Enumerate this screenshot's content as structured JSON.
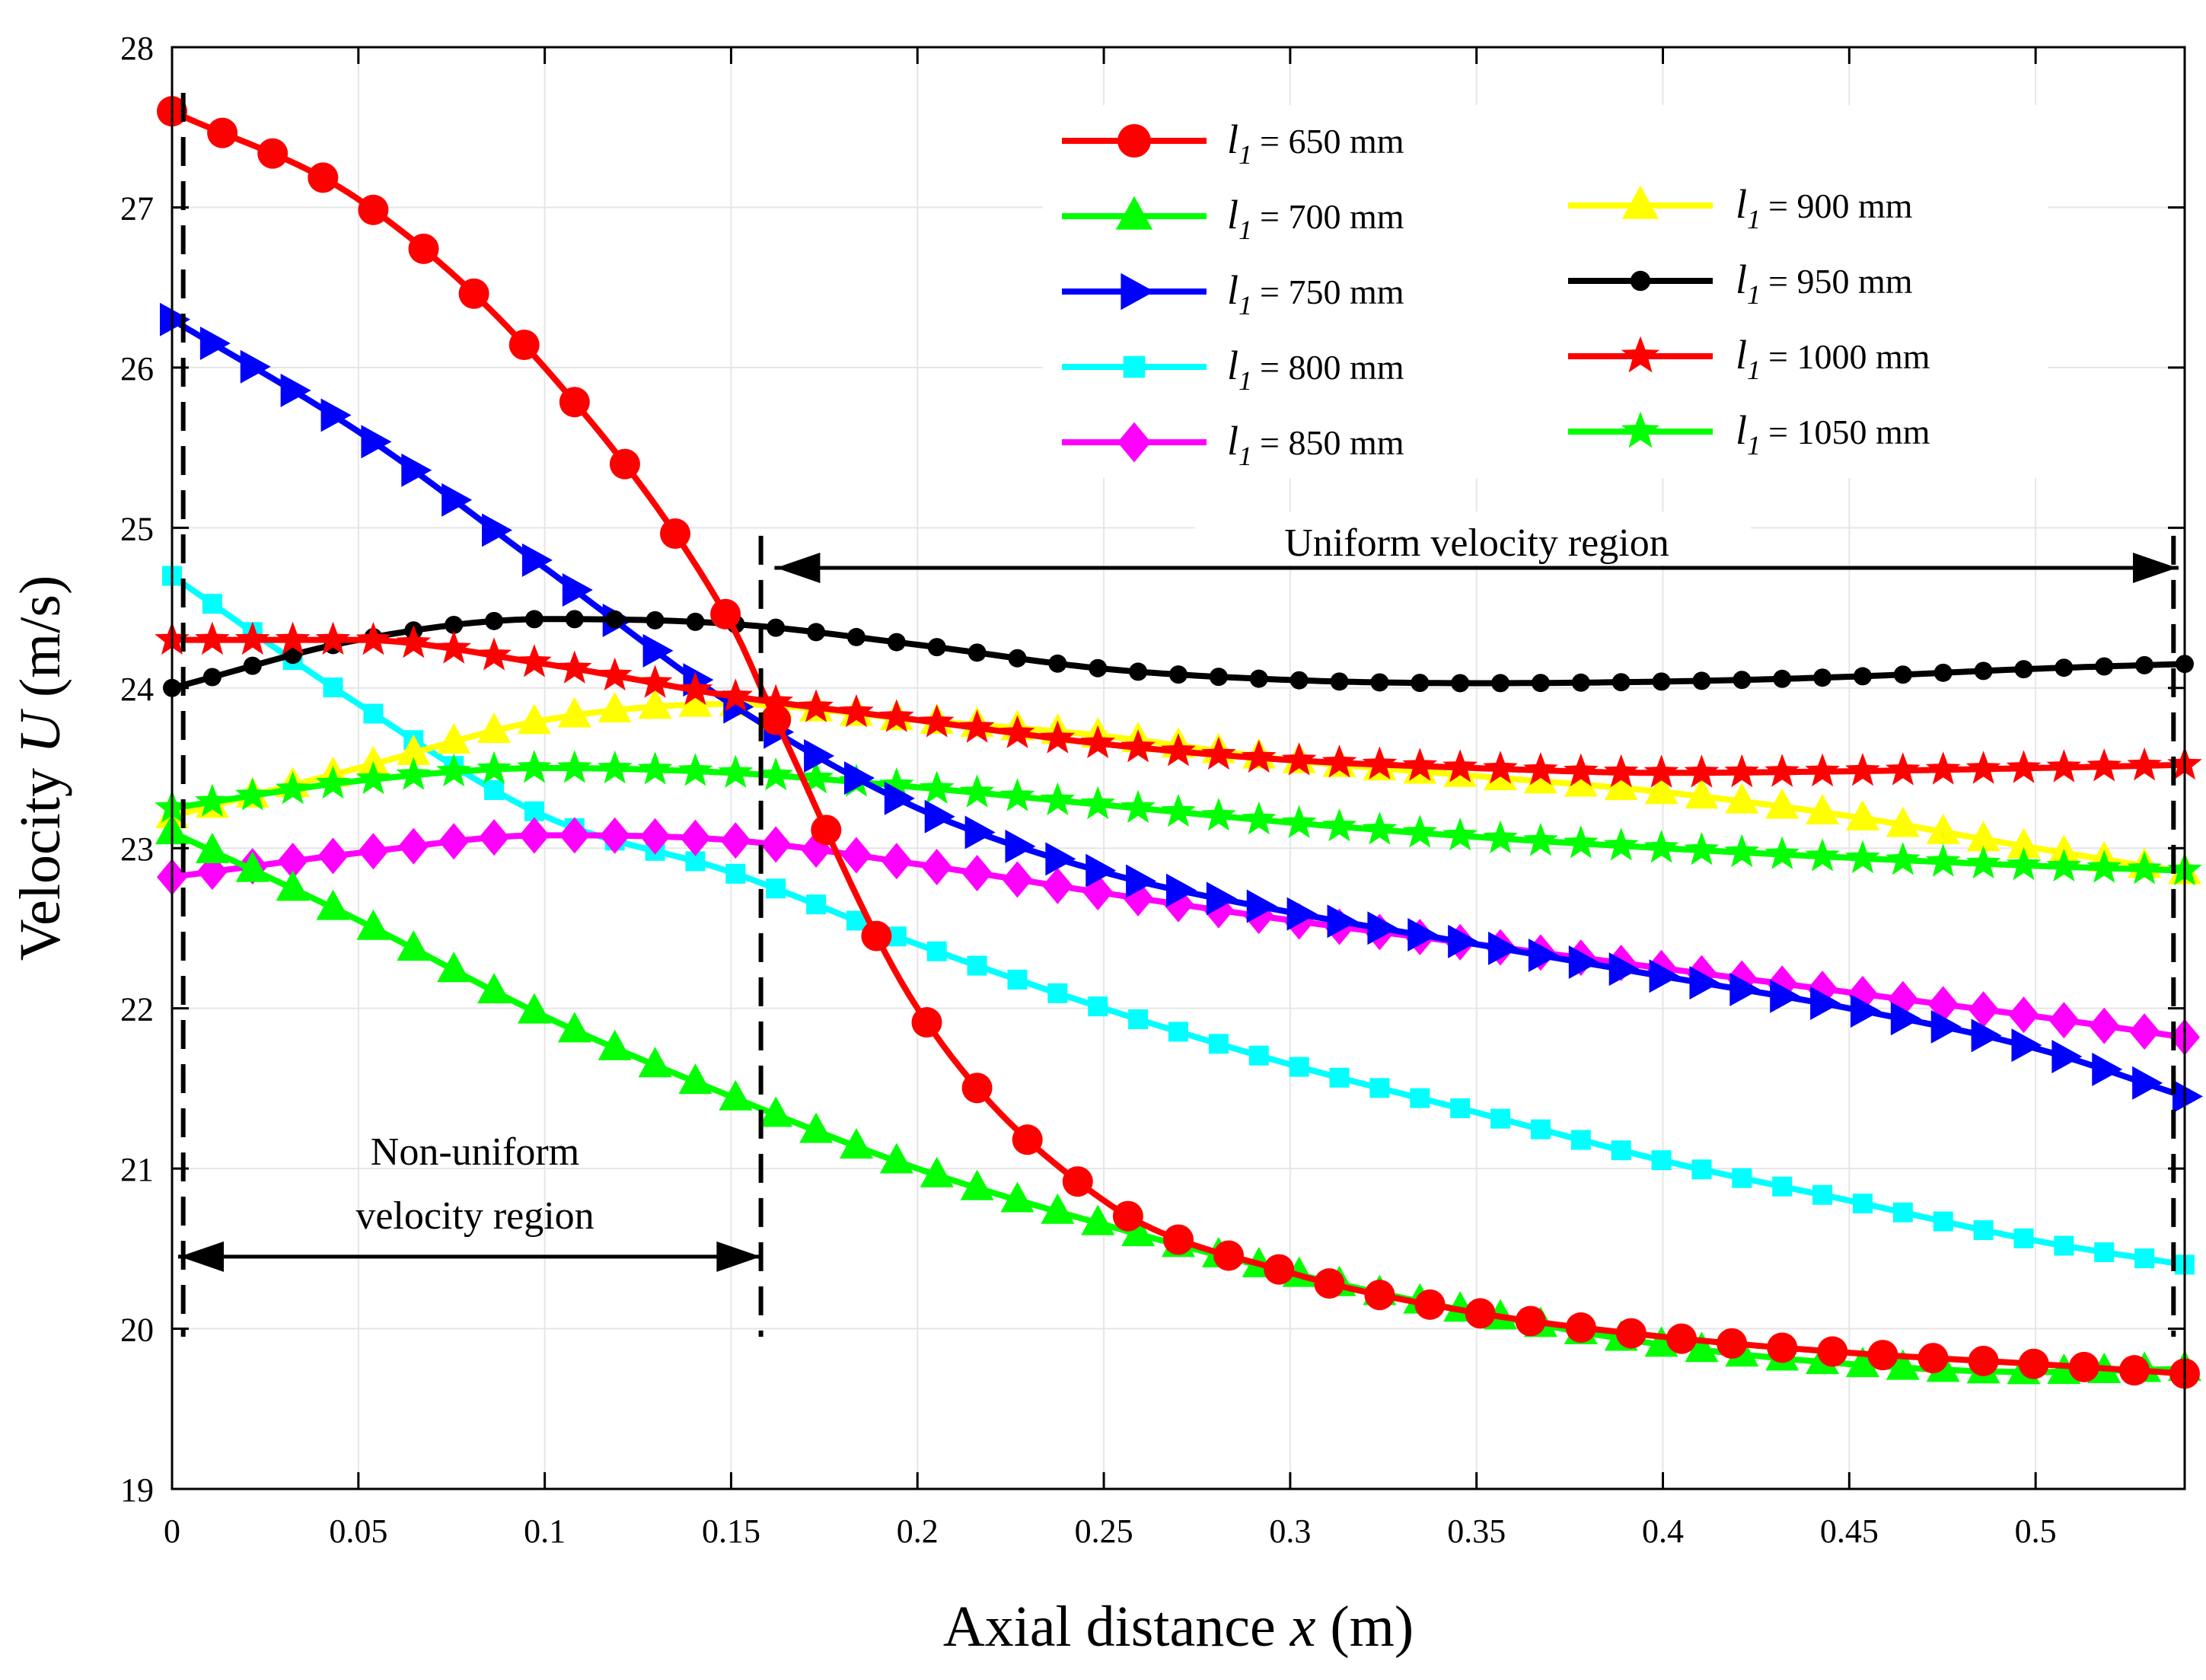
{
  "chart_data": {
    "type": "line",
    "xlabel": "Axial distance x (m)",
    "xlabel_prefix": "Axial distance",
    "xlabel_var": "x",
    "xlabel_suffix": "(m)",
    "ylabel": "Velocity U (m/s)",
    "ylabel_prefix": "Velocity",
    "ylabel_var": "U",
    "ylabel_suffix": "(m/s)",
    "xlim": [
      0,
      0.54
    ],
    "ylim": [
      19,
      28
    ],
    "xticks": [
      0,
      0.05,
      0.1,
      0.15,
      0.2,
      0.25,
      0.3,
      0.35,
      0.4,
      0.45,
      0.5
    ],
    "xtick_labels": [
      "0",
      "0.05",
      "0.1",
      "0.15",
      "0.2",
      "0.25",
      "0.3",
      "0.35",
      "0.4",
      "0.45",
      "0.5"
    ],
    "yticks": [
      19,
      20,
      21,
      22,
      23,
      24,
      25,
      26,
      27,
      28
    ],
    "ytick_labels": [
      "19",
      "20",
      "21",
      "22",
      "23",
      "24",
      "25",
      "26",
      "27",
      "28"
    ],
    "legend_position": "top-right",
    "legend_var": "l",
    "legend_sub": "1",
    "series": [
      {
        "name": "l1 = 650 mm",
        "label_rest": "= 650 mm",
        "color": "#ff0000",
        "marker": "circle",
        "x": [
          0,
          0.05,
          0.1,
          0.15,
          0.16,
          0.2,
          0.25,
          0.3,
          0.35,
          0.4,
          0.45,
          0.5,
          0.54
        ],
        "y": [
          27.6,
          27.05,
          26.0,
          24.4,
          23.9,
          22.0,
          20.8,
          20.35,
          20.1,
          19.95,
          19.85,
          19.78,
          19.72
        ]
      },
      {
        "name": "l1 = 700 mm",
        "label_rest": "= 700 mm",
        "color": "#00ff00",
        "marker": "triangle-up",
        "x": [
          0,
          0.05,
          0.1,
          0.15,
          0.2,
          0.25,
          0.3,
          0.35,
          0.4,
          0.45,
          0.5,
          0.54
        ],
        "y": [
          23.1,
          22.55,
          21.95,
          21.45,
          21.0,
          20.65,
          20.35,
          20.1,
          19.9,
          19.78,
          19.73,
          19.75
        ]
      },
      {
        "name": "l1 = 750 mm",
        "label_rest": "= 750 mm",
        "color": "#0000ff",
        "marker": "triangle-right",
        "x": [
          0,
          0.05,
          0.1,
          0.15,
          0.2,
          0.25,
          0.3,
          0.35,
          0.4,
          0.45,
          0.5,
          0.54
        ],
        "y": [
          26.3,
          25.6,
          24.75,
          23.9,
          23.25,
          22.85,
          22.6,
          22.4,
          22.2,
          22.0,
          21.75,
          21.45
        ]
      },
      {
        "name": "l1 = 800 mm",
        "label_rest": "= 800 mm",
        "color": "#00ffff",
        "marker": "square",
        "x": [
          0,
          0.05,
          0.1,
          0.15,
          0.2,
          0.25,
          0.3,
          0.35,
          0.4,
          0.45,
          0.5,
          0.54
        ],
        "y": [
          24.7,
          23.9,
          23.2,
          22.85,
          22.4,
          22.0,
          21.65,
          21.35,
          21.05,
          20.8,
          20.55,
          20.4
        ]
      },
      {
        "name": "l1 = 850 mm",
        "label_rest": "= 850 mm",
        "color": "#ff00ff",
        "marker": "diamond",
        "x": [
          0,
          0.05,
          0.1,
          0.15,
          0.2,
          0.25,
          0.3,
          0.35,
          0.4,
          0.45,
          0.5,
          0.54
        ],
        "y": [
          22.82,
          22.97,
          23.08,
          23.05,
          22.9,
          22.72,
          22.55,
          22.4,
          22.25,
          22.1,
          21.95,
          21.82
        ]
      },
      {
        "name": "l1 = 900 mm",
        "label_rest": "= 900 mm",
        "color": "#ffff00",
        "marker": "triangle-up",
        "x": [
          0,
          0.05,
          0.1,
          0.15,
          0.2,
          0.25,
          0.3,
          0.35,
          0.4,
          0.45,
          0.5,
          0.54
        ],
        "y": [
          23.2,
          23.5,
          23.8,
          23.9,
          23.8,
          23.7,
          23.55,
          23.45,
          23.35,
          23.2,
          23.0,
          22.85
        ]
      },
      {
        "name": "l1 = 950 mm",
        "label_rest": "= 950 mm",
        "color": "#000000",
        "marker": "small-circle",
        "x": [
          0,
          0.05,
          0.1,
          0.15,
          0.2,
          0.25,
          0.3,
          0.35,
          0.4,
          0.45,
          0.5,
          0.54
        ],
        "y": [
          24.0,
          24.3,
          24.43,
          24.4,
          24.27,
          24.12,
          24.05,
          24.03,
          24.04,
          24.07,
          24.12,
          24.15
        ]
      },
      {
        "name": "l1 = 1000 mm",
        "label_rest": "= 1000 mm",
        "color": "#ff0000",
        "marker": "star",
        "x": [
          0,
          0.05,
          0.1,
          0.15,
          0.2,
          0.25,
          0.3,
          0.35,
          0.4,
          0.45,
          0.5,
          0.54
        ],
        "y": [
          24.3,
          24.3,
          24.15,
          23.95,
          23.8,
          23.65,
          23.55,
          23.5,
          23.47,
          23.48,
          23.5,
          23.52
        ]
      },
      {
        "name": "l1 = 1050 mm",
        "label_rest": "= 1050 mm",
        "color": "#00ff00",
        "marker": "star",
        "x": [
          0,
          0.05,
          0.1,
          0.15,
          0.2,
          0.25,
          0.3,
          0.35,
          0.4,
          0.45,
          0.5,
          0.54
        ],
        "y": [
          23.25,
          23.42,
          23.5,
          23.47,
          23.38,
          23.27,
          23.16,
          23.07,
          23.0,
          22.94,
          22.89,
          22.86
        ]
      }
    ],
    "marker_counts": [
      40,
      50,
      50,
      50,
      50,
      50,
      50,
      50,
      50
    ],
    "annotations": {
      "nonuniform_line1": "Non-uniform",
      "nonuniform_line2": "velocity region",
      "uniform": "Uniform velocity region",
      "nonuniform_x_range": [
        0,
        0.16
      ],
      "uniform_x_range": [
        0.16,
        0.54
      ],
      "nonuniform_arrow_y": 20.45,
      "uniform_arrow_y": 24.75,
      "divider_x": [
        0.003,
        0.158,
        0.537
      ]
    }
  }
}
